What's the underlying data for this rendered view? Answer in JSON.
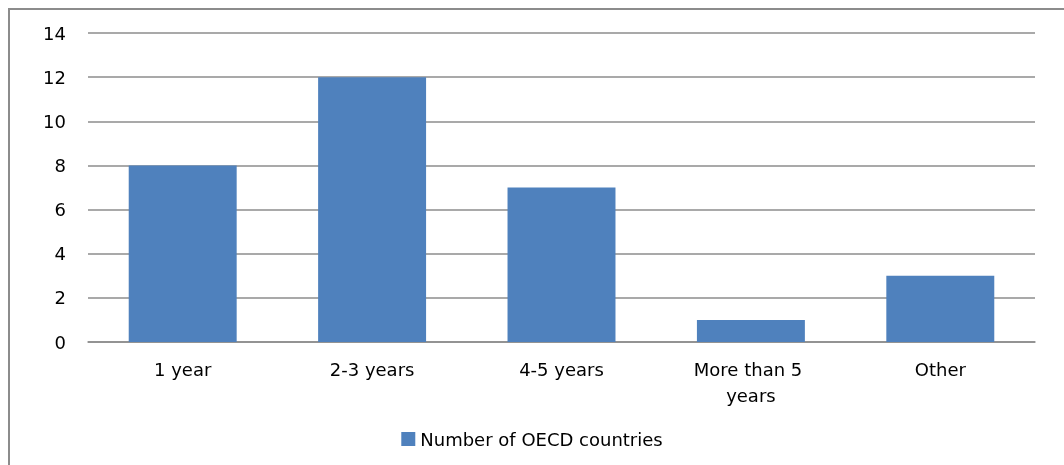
{
  "chart_data": {
    "type": "bar",
    "categories": [
      "1 year",
      "2-3 years",
      "4-5 years",
      "More than 5 years",
      "Other"
    ],
    "series": [
      {
        "name": "Number of OECD countries",
        "color": "#4f81bd",
        "values": [
          8,
          12,
          7,
          1,
          3
        ]
      }
    ],
    "ylim": [
      0,
      14
    ],
    "yticks": [
      0,
      2,
      4,
      6,
      8,
      10,
      12,
      14
    ],
    "grid": "y",
    "legend": "bottom"
  }
}
